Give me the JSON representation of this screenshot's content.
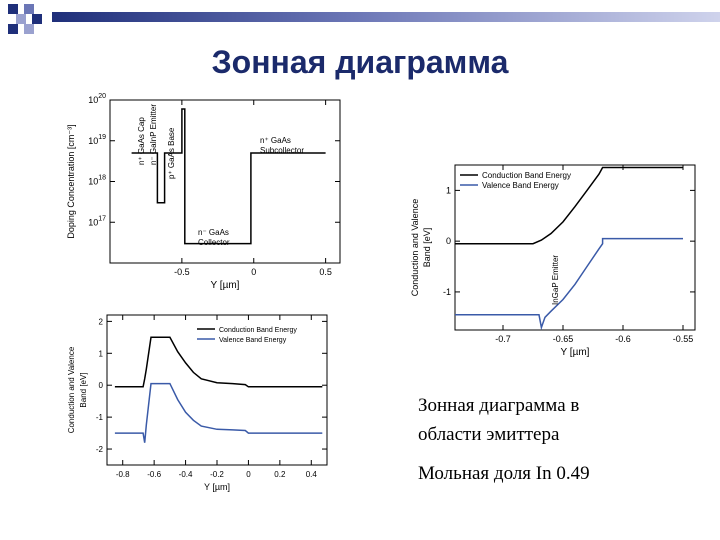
{
  "slide_title": "Зонная диаграмма",
  "captions": {
    "line1": "Зонная диаграмма в",
    "line2": "области эмиттера",
    "line3": "Мольная доля In 0.49"
  },
  "colors": {
    "title": "#1b2a6b",
    "conduction": "#000000",
    "valence": "#3a5aa8"
  },
  "chart_data": [
    {
      "type": "line",
      "name": "doping-profile",
      "xlabel": "Y [µm]",
      "ylabel": "Doping Concentration [cm⁻³]",
      "y_scale": "log",
      "xlim": [
        -1.0,
        0.6
      ],
      "ylim": [
        1e+16,
        1e+20
      ],
      "x_ticks": [
        "-0.5",
        "0",
        "0.5"
      ],
      "y_ticks": [
        "10^17",
        "10^18",
        "10^19",
        "10^20"
      ],
      "annotations": [
        "n⁺ GaAs Cap",
        "n⁻ GaInP Emitter",
        "p⁺ GaAs Base",
        "n⁻ GaAs Collector",
        "n⁺ GaAs Subcollector"
      ],
      "series": [
        {
          "x": [
            -0.85,
            -0.67,
            -0.67,
            -0.62,
            -0.62,
            -0.5,
            -0.5,
            -0.48,
            -0.48,
            -0.02,
            -0.02,
            0.5
          ],
          "y": [
            5e+18,
            5e+18,
            3e+17,
            3e+17,
            5e+18,
            5e+18,
            6e+19,
            6e+19,
            3e+16,
            3e+16,
            5e+18,
            5e+18
          ]
        }
      ]
    },
    {
      "type": "line",
      "name": "band-diagram-full",
      "xlabel": "Y [µm]",
      "ylabel": "Conduction and Valence Band [eV]",
      "xlim": [
        -0.9,
        0.5
      ],
      "ylim": [
        -2.5,
        2.2
      ],
      "x_ticks": [
        "-0.8",
        "-0.6",
        "-0.4",
        "-0.2",
        "0",
        "0.2",
        "0.4"
      ],
      "y_ticks": [
        "2",
        "1",
        "0",
        "-1",
        "-2"
      ],
      "legend": "top-right",
      "series": [
        {
          "name": "Conduction Band Energy",
          "x": [
            -0.85,
            -0.67,
            -0.66,
            -0.65,
            -0.62,
            -0.5,
            -0.45,
            -0.4,
            -0.35,
            -0.3,
            -0.2,
            -0.1,
            -0.02,
            0.0,
            0.47
          ],
          "y": [
            -0.05,
            -0.05,
            0.2,
            0.5,
            1.5,
            1.5,
            1.05,
            0.7,
            0.4,
            0.2,
            0.08,
            0.05,
            0.02,
            -0.05,
            -0.05
          ]
        },
        {
          "name": "Valence Band Energy",
          "x": [
            -0.85,
            -0.67,
            -0.66,
            -0.65,
            -0.62,
            -0.5,
            -0.45,
            -0.4,
            -0.35,
            -0.3,
            -0.2,
            -0.1,
            -0.02,
            0.0,
            0.47
          ],
          "y": [
            -1.5,
            -1.5,
            -1.8,
            -1.25,
            0.05,
            0.05,
            -0.45,
            -0.85,
            -1.1,
            -1.28,
            -1.38,
            -1.4,
            -1.42,
            -1.5,
            -1.5
          ]
        }
      ]
    },
    {
      "type": "line",
      "name": "band-diagram-emitter",
      "xlabel": "Y [µm]",
      "ylabel": "Conduction and Valence Band [eV]",
      "xlim": [
        -0.74,
        -0.54
      ],
      "ylim": [
        -1.75,
        1.5
      ],
      "x_ticks": [
        "-0.7",
        "-0.65",
        "-0.6",
        "-0.55"
      ],
      "y_ticks": [
        "1",
        "0",
        "-1"
      ],
      "legend": "top-left",
      "annotations": [
        "InGaP Emitter"
      ],
      "series": [
        {
          "name": "Conduction Band Energy",
          "x": [
            -0.74,
            -0.675,
            -0.668,
            -0.66,
            -0.65,
            -0.64,
            -0.63,
            -0.62,
            -0.617,
            -0.55
          ],
          "y": [
            -0.05,
            -0.05,
            0.02,
            0.15,
            0.38,
            0.68,
            1.0,
            1.32,
            1.45,
            1.45
          ]
        },
        {
          "name": "Valence Band Energy",
          "x": [
            -0.74,
            -0.67,
            -0.668,
            -0.665,
            -0.66,
            -0.65,
            -0.64,
            -0.63,
            -0.62,
            -0.617,
            -0.617,
            -0.55
          ],
          "y": [
            -1.45,
            -1.45,
            -1.7,
            -1.5,
            -1.38,
            -1.15,
            -0.85,
            -0.5,
            -0.15,
            -0.05,
            0.05,
            0.05
          ]
        }
      ]
    }
  ]
}
